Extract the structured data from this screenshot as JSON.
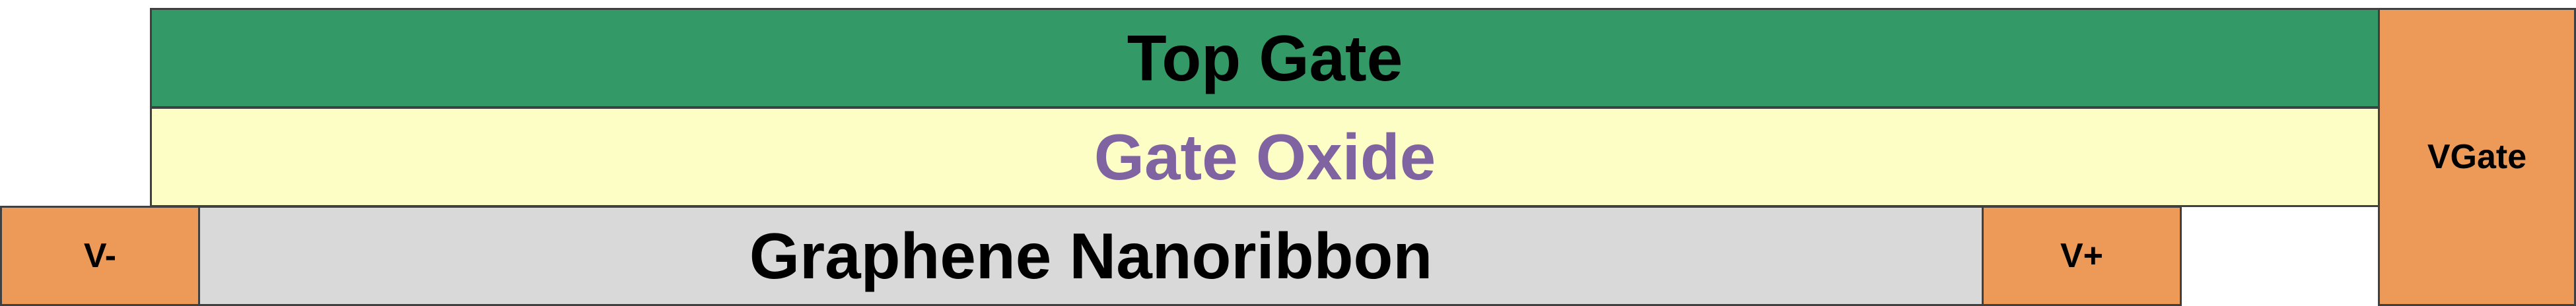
{
  "layers": {
    "top_gate": {
      "label": "Top Gate",
      "fill": "#339966",
      "text_color": "#000000"
    },
    "gate_oxide": {
      "label": "Gate Oxide",
      "fill": "#FDFDC6",
      "text_color": "#8064A2"
    },
    "graphene_nanoribbon": {
      "label": "Graphene Nanoribbon",
      "fill": "#D9D9D9",
      "text_color": "#000000"
    }
  },
  "contacts": {
    "vgate": {
      "label": "VGate",
      "fill": "#ED9A58"
    },
    "v_minus": {
      "label": "V-",
      "fill": "#ED9A58"
    },
    "v_plus": {
      "label": "V+",
      "fill": "#ED9A58"
    }
  },
  "colors": {
    "outline": "#404040"
  }
}
